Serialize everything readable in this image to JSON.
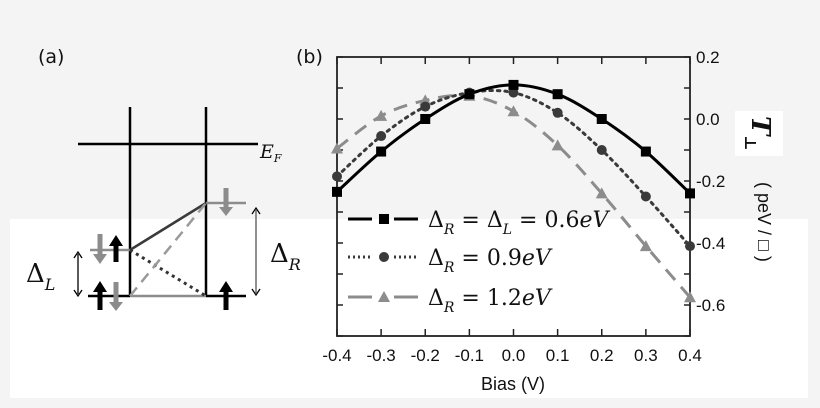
{
  "figure": {
    "background": "#f4f4f4",
    "panel_a": {
      "label": "(a)",
      "fermi_label_main": "E",
      "fermi_label_sub": "F",
      "delta_left_main": "Δ",
      "delta_left_sub": "L",
      "delta_right_main": "Δ",
      "delta_right_sub": "R"
    },
    "panel_b": {
      "label": "(b)"
    }
  },
  "chart_data": {
    "type": "line",
    "title": "",
    "xlabel": "Bias (V)",
    "ylabel": "T⊥ ( peV / □ )",
    "ylabel_symbol": "T",
    "ylabel_sub": "⊥",
    "ylabel_units": "( peV / □ )",
    "xlim": [
      -0.4,
      0.4
    ],
    "ylim": [
      -0.7,
      0.2
    ],
    "x_ticks": [
      "-0.4",
      "-0.3",
      "-0.2",
      "-0.1",
      "0.0",
      "0.1",
      "0.2",
      "0.3",
      "0.4"
    ],
    "y_ticks": [
      "0.2",
      "0.0",
      "-0.2",
      "-0.4",
      "-0.6"
    ],
    "y_axis_side": "right",
    "grid": false,
    "legend_position": "lower-left inside",
    "x": [
      -0.4,
      -0.3,
      -0.2,
      -0.1,
      0.0,
      0.1,
      0.2,
      0.3,
      0.4
    ],
    "series": [
      {
        "name": "Δ_R = Δ_L = 0.6eV",
        "legend_parts": [
          "Δ",
          "R",
          " = Δ",
          "L",
          " = 0.6eV"
        ],
        "marker": "square",
        "line": "solid",
        "color": "#000000",
        "values": [
          -0.235,
          -0.105,
          0.0,
          0.08,
          0.11,
          0.08,
          0.0,
          -0.105,
          -0.24
        ]
      },
      {
        "name": "Δ_R = 0.9eV",
        "legend_parts": [
          "Δ",
          "R",
          " = 0.9eV"
        ],
        "marker": "circle",
        "line": "dotted",
        "color": "#3a3a3a",
        "values": [
          -0.185,
          -0.055,
          0.04,
          0.085,
          0.085,
          0.02,
          -0.1,
          -0.25,
          -0.41
        ]
      },
      {
        "name": "Δ_R = 1.2eV",
        "legend_parts": [
          "Δ",
          "R",
          " = 1.2eV"
        ],
        "marker": "triangle",
        "line": "dashed",
        "color": "#8c8c8c",
        "values": [
          -0.095,
          0.01,
          0.06,
          0.075,
          0.025,
          -0.085,
          -0.24,
          -0.41,
          -0.575
        ]
      }
    ]
  }
}
